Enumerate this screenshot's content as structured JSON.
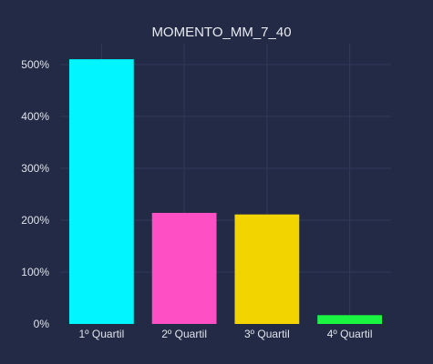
{
  "chart_data": {
    "type": "bar",
    "title": "MOMENTO_MM_7_40",
    "xlabel": "",
    "ylabel": "",
    "categories": [
      "1º Quartil",
      "2º Quartil",
      "3º Quartil",
      "4º Quartil"
    ],
    "values": [
      5.1,
      2.14,
      2.11,
      0.17
    ],
    "colors": [
      "#00f5ff",
      "#ff4fc4",
      "#f2d400",
      "#19f540"
    ],
    "ylim": [
      0,
      5.4
    ],
    "yticks": [
      0,
      1,
      2,
      3,
      4,
      5
    ],
    "ytick_labels": [
      "0%",
      "100%",
      "200%",
      "300%",
      "400%",
      "500%"
    ],
    "grid": true,
    "background": "#222a45",
    "grid_color": "#303a5a"
  }
}
